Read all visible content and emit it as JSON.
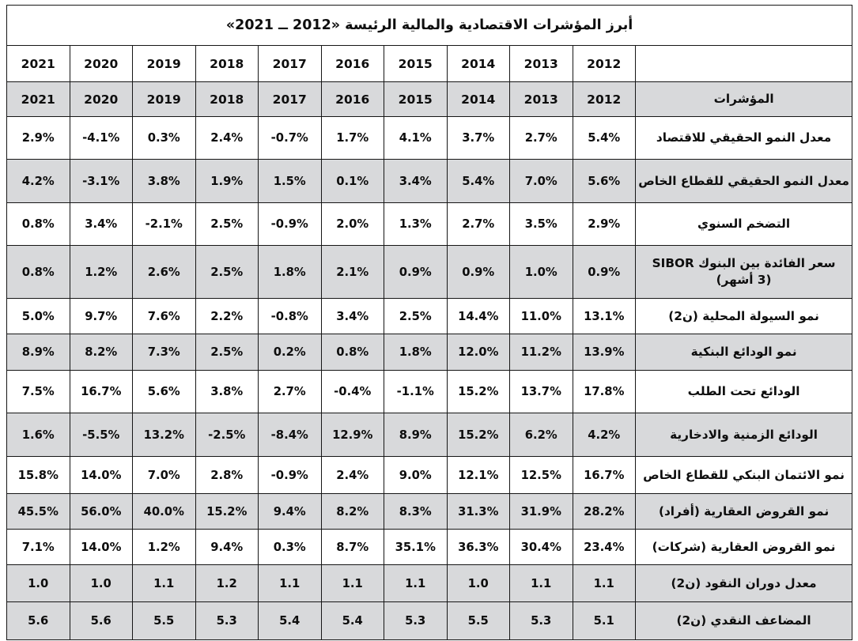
{
  "chart_data": {
    "type": "table",
    "title": "أبرز المؤشرات الاقتصادية والمالية الرئيسة «2012 ــ 2021»",
    "header_label": "المؤشرات",
    "years": [
      "2021",
      "2020",
      "2019",
      "2018",
      "2017",
      "2016",
      "2015",
      "2014",
      "2013",
      "2012"
    ],
    "rows": [
      {
        "label": "معدل النمو الحقيقي للاقتصاد",
        "shaded": false,
        "values": [
          "2.9%",
          "-4.1%",
          "0.3%",
          "2.4%",
          "-0.7%",
          "1.7%",
          "4.1%",
          "3.7%",
          "2.7%",
          "5.4%"
        ]
      },
      {
        "label": "معدل النمو الحقيقي للقطاع الخاص",
        "shaded": true,
        "values": [
          "4.2%",
          "-3.1%",
          "3.8%",
          "1.9%",
          "1.5%",
          "0.1%",
          "3.4%",
          "5.4%",
          "7.0%",
          "5.6%"
        ]
      },
      {
        "label": "التضخم السنوي",
        "shaded": false,
        "values": [
          "0.8%",
          "3.4%",
          "-2.1%",
          "2.5%",
          "-0.9%",
          "2.0%",
          "1.3%",
          "2.7%",
          "3.5%",
          "2.9%"
        ]
      },
      {
        "label": "سعر الفائدة بين البنوك SIBOR",
        "label2": "(3 أشهر)",
        "shaded": true,
        "values": [
          "0.8%",
          "1.2%",
          "2.6%",
          "2.5%",
          "1.8%",
          "2.1%",
          "0.9%",
          "0.9%",
          "1.0%",
          "0.9%"
        ]
      },
      {
        "label": "نمو السيولة المحلية (ن2)",
        "shaded": false,
        "values": [
          "5.0%",
          "9.7%",
          "7.6%",
          "2.2%",
          "-0.8%",
          "3.4%",
          "2.5%",
          "14.4%",
          "11.0%",
          "13.1%"
        ]
      },
      {
        "label": "نمو الودائع البنكية",
        "shaded": true,
        "values": [
          "8.9%",
          "8.2%",
          "7.3%",
          "2.5%",
          "0.2%",
          "0.8%",
          "1.8%",
          "12.0%",
          "11.2%",
          "13.9%"
        ]
      },
      {
        "label": "الودائع تحت الطلب",
        "shaded": false,
        "values": [
          "7.5%",
          "16.7%",
          "5.6%",
          "3.8%",
          "2.7%",
          "-0.4%",
          "-1.1%",
          "15.2%",
          "13.7%",
          "17.8%"
        ]
      },
      {
        "label": "الودائع الزمنية والادخارية",
        "shaded": true,
        "values": [
          "1.6%",
          "-5.5%",
          "13.2%",
          "-2.5%",
          "-8.4%",
          "12.9%",
          "8.9%",
          "15.2%",
          "6.2%",
          "4.2%"
        ]
      },
      {
        "label": "نمو الائتمان البنكي للقطاع الخاص",
        "shaded": false,
        "values": [
          "15.8%",
          "14.0%",
          "7.0%",
          "2.8%",
          "-0.9%",
          "2.4%",
          "9.0%",
          "12.1%",
          "12.5%",
          "16.7%"
        ]
      },
      {
        "label": "نمو القروض العقارية (أفراد)",
        "shaded": true,
        "values": [
          "45.5%",
          "56.0%",
          "40.0%",
          "15.2%",
          "9.4%",
          "8.2%",
          "8.3%",
          "31.3%",
          "31.9%",
          "28.2%"
        ]
      },
      {
        "label": "نمو القروض العقارية (شركات)",
        "shaded": false,
        "values": [
          "7.1%",
          "14.0%",
          "1.2%",
          "9.4%",
          "0.3%",
          "8.7%",
          "35.1%",
          "36.3%",
          "30.4%",
          "23.4%"
        ]
      },
      {
        "label": "معدل دوران النقود (ن2)",
        "shaded": true,
        "values": [
          "1.0",
          "1.0",
          "1.1",
          "1.2",
          "1.1",
          "1.1",
          "1.1",
          "1.0",
          "1.1",
          "1.1"
        ]
      },
      {
        "label": "المضاعف النقدي (ن2)",
        "shaded": true,
        "values": [
          "5.6",
          "5.6",
          "5.5",
          "5.3",
          "5.4",
          "5.4",
          "5.3",
          "5.5",
          "5.3",
          "5.1"
        ]
      }
    ],
    "layout_hints": {
      "columns_left_to_right": "2021 → 2012, indicator label column on the far right",
      "legend_position": "none",
      "grid": "full black gridlines"
    },
    "colors": {
      "title_bg": "#7b7c7e",
      "title_text": "#ffffff",
      "shaded_row_bg": "#d8d9db",
      "white_row_bg": "#ffffff",
      "border": "#161616",
      "text": "#0e0e0e"
    }
  }
}
